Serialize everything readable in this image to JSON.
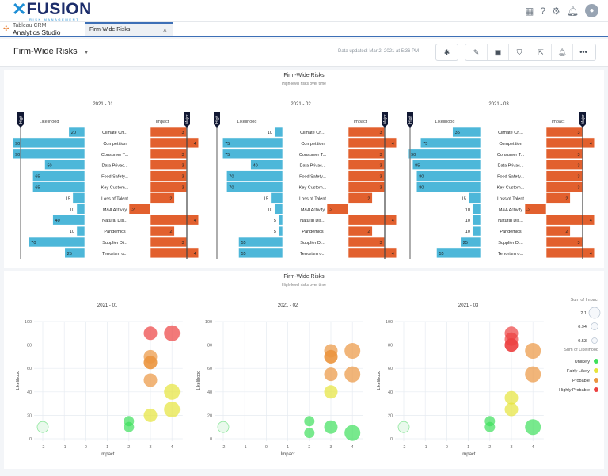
{
  "header": {
    "logo_text": "FUSION",
    "logo_sub": "RISK MANAGEMENT",
    "icons": [
      "apps-grid-icon",
      "help-icon",
      "gear-icon",
      "bell-icon",
      "avatar-icon"
    ]
  },
  "tabs": {
    "app_line1": "Tableau CRM",
    "app_line2": "Analytics Studio",
    "active_tab": "Firm-Wide Risks",
    "close": "×"
  },
  "toolbar": {
    "title": "Firm-Wide Risks",
    "date_updated": "Data updated: Mar 2, 2021 at 5:36 PM",
    "buttons": [
      "asterisk-icon",
      "pencil-icon",
      "save-icon",
      "clip-icon",
      "share-icon",
      "bell-plus-icon",
      "more-icon"
    ]
  },
  "colors": {
    "likelihood_bar": "#4db7d9",
    "impact_bar": "#e2602e",
    "unlikely": "#3fe05c",
    "fairly_likely": "#e6e43a",
    "probable": "#eb9540",
    "highly_probable": "#ec4040"
  },
  "bar_panel": {
    "title": "Firm-Wide Risks",
    "subtitle": "High-level risks over time",
    "likelihood_label": "Likelihood",
    "impact_label": "Impact",
    "likelihood_marker": "High",
    "impact_marker": "Major"
  },
  "risks": [
    "Climate Ch...",
    "Competition",
    "Consumer T...",
    "Data Privac...",
    "Food Safety...",
    "Key Custom...",
    "Loss of Talent",
    "M&A Activity",
    "Natural Dis...",
    "Pandemics",
    "Supplier Di...",
    "Terrorism o..."
  ],
  "chart_data": [
    {
      "type": "bar",
      "title": "2021 - 01",
      "likelihood": [
        20,
        90,
        90,
        50,
        65,
        65,
        15,
        10,
        40,
        10,
        70,
        25
      ],
      "impact": [
        3,
        4,
        3,
        3,
        3,
        3,
        2,
        -2,
        4,
        2,
        3,
        4
      ]
    },
    {
      "type": "bar",
      "title": "2021 - 02",
      "likelihood": [
        10,
        75,
        75,
        40,
        70,
        70,
        15,
        10,
        5,
        5,
        55,
        55
      ],
      "impact": [
        3,
        4,
        3,
        3,
        3,
        3,
        2,
        -2,
        4,
        2,
        3,
        4
      ]
    },
    {
      "type": "bar",
      "title": "2021 - 03",
      "likelihood": [
        35,
        75,
        90,
        85,
        80,
        80,
        15,
        10,
        10,
        10,
        25,
        55
      ],
      "impact": [
        3,
        4,
        3,
        3,
        3,
        3,
        2,
        -2,
        4,
        2,
        3,
        4
      ]
    },
    {
      "type": "scatter",
      "panel_title": "Firm-Wide Risks",
      "panel_subtitle": "High-level risks over time",
      "xlabel": "Impact",
      "ylabel": "Likelihood",
      "xticks": [
        -2,
        -1,
        0,
        1,
        2,
        3,
        4
      ],
      "yticks": [
        0,
        20,
        40,
        60,
        80,
        100
      ],
      "ylim": [
        0,
        100
      ],
      "xlim": [
        -2,
        4
      ],
      "grid": true,
      "facets": [
        "2021 - 01",
        "2021 - 02",
        "2021 - 03"
      ],
      "size_legend": {
        "title": "Sum of Impact",
        "values": [
          "2.1",
          "0.94",
          "0.53"
        ]
      },
      "color_legend": {
        "title": "Sum of Likelihood",
        "entries": [
          "Unlikely",
          "Fairly Likely",
          "Probable",
          "Highly Probable"
        ]
      }
    }
  ]
}
